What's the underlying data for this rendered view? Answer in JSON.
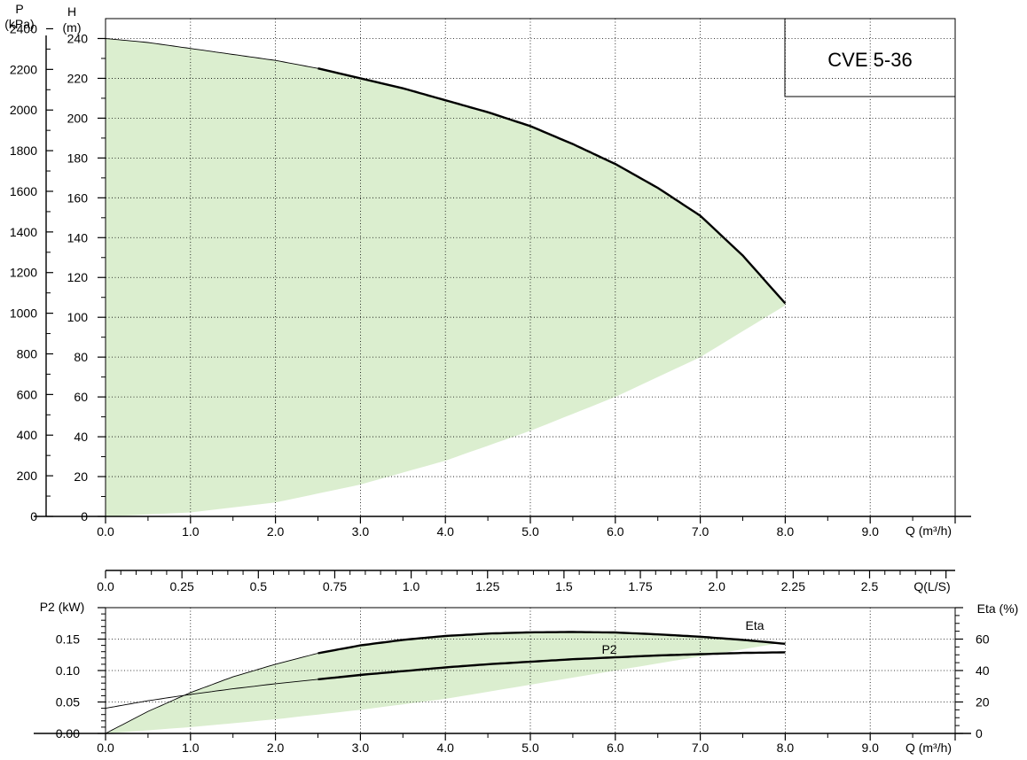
{
  "chart_data": [
    {
      "type": "line",
      "title": "CVE 5-36",
      "x_axis": {
        "label": "Q (m³/h)",
        "range": [
          0,
          10
        ],
        "ticks": [
          0,
          1,
          2,
          3,
          4,
          5,
          6,
          7,
          8,
          9
        ],
        "tick_labels": [
          "0.0",
          "1.0",
          "2.0",
          "3.0",
          "4.0",
          "5.0",
          "6.0",
          "7.0",
          "8.0",
          "9.0"
        ]
      },
      "y_axis": {
        "label": "H (m)",
        "label_lines": [
          "H",
          "(m)"
        ],
        "range": [
          0,
          250
        ],
        "ticks": [
          0,
          20,
          40,
          60,
          80,
          100,
          120,
          140,
          160,
          180,
          200,
          220,
          240
        ],
        "tick_labels": [
          "0",
          "20",
          "40",
          "60",
          "80",
          "100",
          "120",
          "140",
          "160",
          "180",
          "200",
          "220",
          "240"
        ]
      },
      "y2_axis": {
        "label": "P (kPa)",
        "label_lines": [
          "P",
          "(kPa)"
        ],
        "range": [
          0,
          2450
        ],
        "ticks": [
          0,
          200,
          400,
          600,
          800,
          1000,
          1200,
          1400,
          1600,
          1800,
          2000,
          2200,
          2400
        ],
        "tick_labels": [
          "0",
          "200",
          "400",
          "600",
          "800",
          "1000",
          "1200",
          "1400",
          "1600",
          "1800",
          "2000",
          "2200",
          "2400"
        ]
      },
      "grid": true,
      "series": [
        {
          "id": "head",
          "x": [
            0,
            0.5,
            1.0,
            1.5,
            2.0,
            2.5,
            3.0,
            3.5,
            4.0,
            4.5,
            5.0,
            5.5,
            6.0,
            6.5,
            7.0,
            7.5,
            8.0
          ],
          "y": [
            240,
            238,
            235,
            232,
            229,
            225,
            220,
            215,
            209,
            203,
            196,
            187,
            177,
            165,
            151,
            131,
            107
          ]
        }
      ],
      "operating_range": {
        "x": [
          0,
          1,
          2,
          3,
          4,
          5,
          6,
          7,
          8
        ],
        "lower": [
          0,
          2,
          7,
          16,
          28,
          43,
          60,
          80,
          106
        ]
      }
    },
    {
      "type": "line",
      "x_axis": {
        "label": "Q (m³/h)",
        "range": [
          0,
          10
        ],
        "ticks": [
          0,
          1,
          2,
          3,
          4,
          5,
          6,
          7,
          8,
          9
        ],
        "tick_labels": [
          "0.0",
          "1.0",
          "2.0",
          "3.0",
          "4.0",
          "5.0",
          "6.0",
          "7.0",
          "8.0",
          "9.0"
        ]
      },
      "x2_axis": {
        "label": "Q(L/S)",
        "range": [
          0,
          2.78
        ],
        "ticks": [
          0,
          0.25,
          0.5,
          0.75,
          1.0,
          1.25,
          1.5,
          1.75,
          2.0,
          2.25,
          2.5
        ],
        "tick_labels": [
          "0.0",
          "0.25",
          "0.5",
          "0.75",
          "1.0",
          "1.25",
          "1.5",
          "1.75",
          "2.0",
          "2.25",
          "2.5"
        ]
      },
      "y_axis": {
        "label": "P2 (kW)",
        "range": [
          0,
          0.2
        ],
        "ticks": [
          0,
          0.05,
          0.1,
          0.15
        ],
        "tick_labels": [
          "0.00",
          "0.05",
          "0.10",
          "0.15"
        ]
      },
      "y2_axis": {
        "label": "Eta (%)",
        "range": [
          0,
          80
        ],
        "ticks": [
          0,
          20,
          40,
          60
        ],
        "tick_labels": [
          "0",
          "20",
          "40",
          "60"
        ]
      },
      "grid": true,
      "series": [
        {
          "name": "Eta",
          "axis": "y2",
          "x": [
            0,
            0.5,
            1.0,
            1.5,
            2.0,
            2.5,
            3.0,
            3.5,
            4.0,
            4.5,
            5.0,
            5.5,
            6.0,
            6.5,
            7.0,
            7.5,
            8.0
          ],
          "y": [
            0,
            14,
            26,
            36,
            44,
            51,
            56,
            59.5,
            62,
            63.5,
            64.3,
            64.5,
            64.2,
            63,
            61.5,
            59.5,
            57
          ]
        },
        {
          "name": "P2",
          "axis": "y",
          "x": [
            0,
            0.5,
            1.0,
            1.5,
            2.0,
            2.5,
            3.0,
            3.5,
            4.0,
            4.5,
            5.0,
            5.5,
            6.0,
            6.5,
            7.0,
            7.5,
            8.0
          ],
          "y": [
            0.04,
            0.052,
            0.062,
            0.071,
            0.079,
            0.086,
            0.093,
            0.099,
            0.105,
            0.11,
            0.114,
            0.118,
            0.121,
            0.124,
            0.126,
            0.128,
            0.129
          ]
        }
      ],
      "efficiency_band": {
        "x": [
          0,
          1,
          2,
          3,
          4,
          5,
          6,
          7,
          8
        ],
        "lower": [
          0,
          4,
          9,
          15,
          22,
          31,
          40,
          49,
          58
        ]
      }
    }
  ]
}
